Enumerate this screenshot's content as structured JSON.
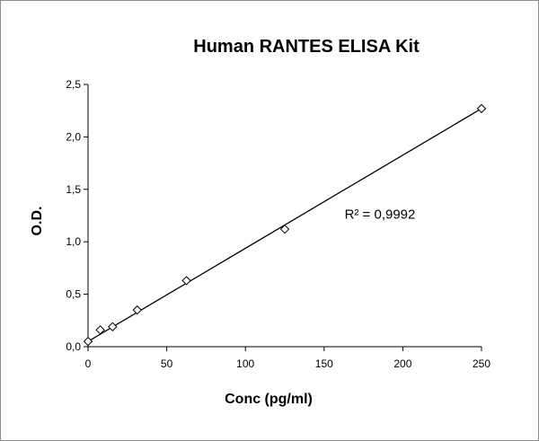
{
  "chart_data": {
    "type": "scatter",
    "title": "Human RANTES ELISA Kit",
    "xlabel": "Conc (pg/ml)",
    "ylabel": "O.D.",
    "xlim": [
      0,
      250
    ],
    "ylim": [
      0,
      2.5
    ],
    "x_ticks": [
      "0",
      "50",
      "100",
      "150",
      "200",
      "250"
    ],
    "y_ticks": [
      "0,0",
      "0,5",
      "1,0",
      "1,5",
      "2,0",
      "2,5"
    ],
    "x_tick_values": [
      0,
      50,
      100,
      150,
      200,
      250
    ],
    "y_tick_values": [
      0,
      0.5,
      1.0,
      1.5,
      2.0,
      2.5
    ],
    "grid": false,
    "legend": "none",
    "series": [
      {
        "marker": "diamond",
        "x": [
          0,
          7.8,
          15.6,
          31.25,
          62.5,
          125,
          250
        ],
        "y": [
          0.05,
          0.16,
          0.19,
          0.35,
          0.63,
          1.12,
          2.27
        ]
      }
    ],
    "trendline": {
      "type": "linear",
      "x": [
        0,
        250
      ],
      "y": [
        0.05,
        2.27
      ]
    },
    "annotation": "R² = 0,9992",
    "annotation_anchor": [
      163,
      1.22
    ]
  }
}
